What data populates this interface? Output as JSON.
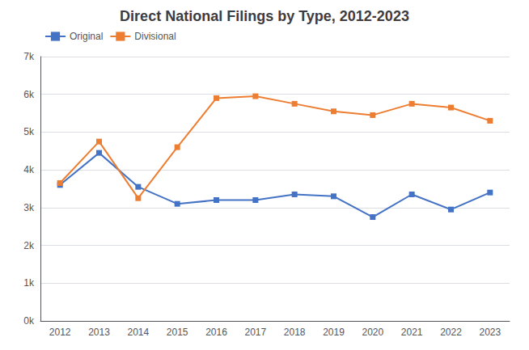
{
  "chart_data": {
    "type": "line",
    "title": "Direct National Filings by Type, 2012-2023",
    "categories": [
      "2012",
      "2013",
      "2014",
      "2015",
      "2016",
      "2017",
      "2018",
      "2019",
      "2020",
      "2021",
      "2022",
      "2023"
    ],
    "series": [
      {
        "name": "Original",
        "color": "#4472C4",
        "marker": "square",
        "values": [
          3600,
          4450,
          3550,
          3100,
          3200,
          3200,
          3350,
          3300,
          2750,
          3350,
          2950,
          3400
        ]
      },
      {
        "name": "Divisional",
        "color": "#ED7D31",
        "marker": "square",
        "values": [
          3650,
          4750,
          3250,
          4600,
          5900,
          5950,
          5750,
          5550,
          5450,
          5750,
          5650,
          5300
        ]
      }
    ],
    "ylim": [
      0,
      7000
    ],
    "yticks": [
      {
        "value": 0,
        "label": "0k"
      },
      {
        "value": 1000,
        "label": "1k"
      },
      {
        "value": 2000,
        "label": "2k"
      },
      {
        "value": 3000,
        "label": "3k"
      },
      {
        "value": 4000,
        "label": "4k"
      },
      {
        "value": 5000,
        "label": "5k"
      },
      {
        "value": 6000,
        "label": "6k"
      },
      {
        "value": 7000,
        "label": "7k"
      }
    ],
    "grid": true,
    "legend": "upper left"
  }
}
